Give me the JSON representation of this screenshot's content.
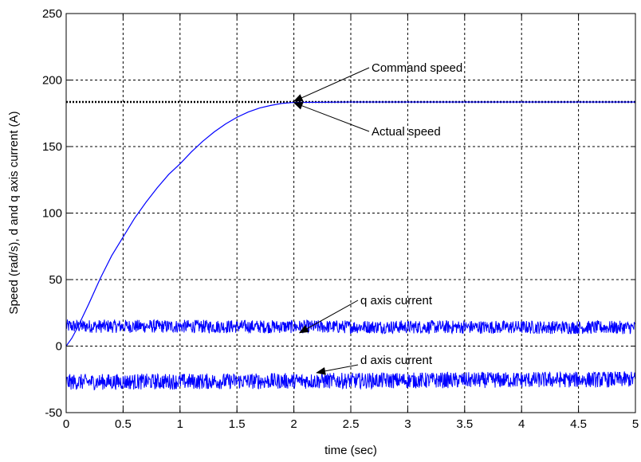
{
  "chart_data": {
    "type": "line",
    "title": "",
    "xlabel": "time (sec)",
    "ylabel": "Speed (rad/s), d and q axis current (A)",
    "xlim": [
      0,
      5
    ],
    "ylim": [
      -50,
      250
    ],
    "xticks": [
      0,
      0.5,
      1,
      1.5,
      2,
      2.5,
      3,
      3.5,
      4,
      4.5,
      5
    ],
    "xtick_labels": [
      "0",
      "0.5",
      "1",
      "1.5",
      "2",
      "2.5",
      "3",
      "3.5",
      "4",
      "4.5",
      "5"
    ],
    "yticks": [
      -50,
      0,
      50,
      100,
      150,
      200,
      250
    ],
    "ytick_labels": [
      "-50",
      "0",
      "50",
      "100",
      "150",
      "200",
      "250"
    ],
    "grid": true,
    "series": [
      {
        "key": "command",
        "style": "dotted",
        "color": "#000000",
        "x": [
          0,
          5
        ],
        "y": [
          183.5,
          183.5
        ]
      },
      {
        "key": "actual",
        "style": "solid",
        "color": "#0000ff",
        "x": [
          0,
          0.05,
          0.1,
          0.2,
          0.3,
          0.4,
          0.5,
          0.6,
          0.7,
          0.8,
          0.9,
          1.0,
          1.1,
          1.2,
          1.3,
          1.4,
          1.5,
          1.6,
          1.7,
          1.8,
          1.9,
          2.0,
          2.5,
          3.0,
          3.5,
          4.0,
          4.5,
          5.0
        ],
        "y": [
          0,
          6,
          14,
          32,
          51,
          68,
          82,
          96,
          108,
          119,
          129,
          137,
          146,
          154,
          161,
          167,
          172,
          176,
          179,
          181,
          182.5,
          183.2,
          183.5,
          183.5,
          183.5,
          183.5,
          183.5,
          183.5
        ]
      },
      {
        "key": "q_current",
        "style": "noisy-band",
        "color": "#0000ff",
        "x": [
          0,
          5
        ],
        "center": [
          15,
          14
        ],
        "band": 5
      },
      {
        "key": "d_current",
        "style": "noisy-band",
        "color": "#0000ff",
        "x": [
          0,
          5
        ],
        "center": [
          -27,
          -25
        ],
        "band": 6
      }
    ],
    "annotations": [
      {
        "key": "command",
        "text": "Command speed",
        "point": [
          2.0,
          184
        ]
      },
      {
        "key": "actual",
        "text": "Actual speed",
        "point": [
          2.0,
          183
        ]
      },
      {
        "key": "q",
        "text": "q axis current",
        "point": [
          2.05,
          10
        ]
      },
      {
        "key": "d",
        "text": "d axis current",
        "point": [
          2.2,
          -20
        ]
      }
    ]
  }
}
